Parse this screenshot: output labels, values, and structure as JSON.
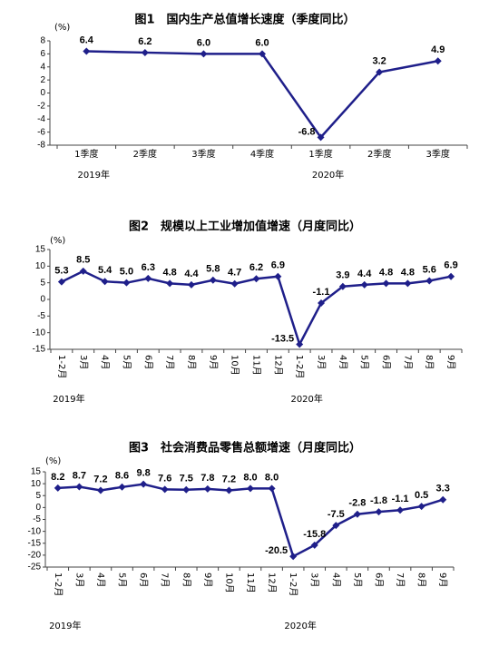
{
  "chart_data": [
    {
      "type": "line",
      "title": "图1　国内生产总值增长速度（季度同比）",
      "unit": "(%)",
      "categories": [
        "1季度",
        "2季度",
        "3季度",
        "4季度",
        "1季度",
        "2季度",
        "3季度"
      ],
      "year_labels": [
        "2019年",
        "2020年"
      ],
      "values": [
        6.4,
        6.2,
        6.0,
        6.0,
        -6.8,
        3.2,
        4.9
      ],
      "value_labels": [
        "6.4",
        "6.2",
        "6.0",
        "6.0",
        "-6.8",
        "3.2",
        "4.9"
      ],
      "color": "#1f1f8a",
      "ylim": [
        -8,
        8
      ],
      "yticks": [
        -8,
        -6,
        -4,
        -2,
        0,
        2,
        4,
        6,
        8
      ]
    },
    {
      "type": "line",
      "title": "图2　规模以上工业增加值增速（月度同比）",
      "unit": "(%)",
      "categories": [
        "1-2月",
        "3月",
        "4月",
        "5月",
        "6月",
        "7月",
        "8月",
        "9月",
        "10月",
        "11月",
        "12月",
        "1-2月",
        "3月",
        "4月",
        "5月",
        "6月",
        "7月",
        "8月",
        "9月"
      ],
      "year_labels": [
        "2019年",
        "2020年"
      ],
      "values": [
        5.3,
        8.5,
        5.4,
        5.0,
        6.3,
        4.8,
        4.4,
        5.8,
        4.7,
        6.2,
        6.9,
        -13.5,
        -1.1,
        3.9,
        4.4,
        4.8,
        4.8,
        5.6,
        6.9
      ],
      "value_labels": [
        "5.3",
        "8.5",
        "5.4",
        "5.0",
        "6.3",
        "4.8",
        "4.4",
        "5.8",
        "4.7",
        "6.2",
        "6.9",
        "-13.5",
        "-1.1",
        "3.9",
        "4.4",
        "4.8",
        "4.8",
        "5.6",
        "6.9"
      ],
      "color": "#1f1f8a",
      "ylim": [
        -15,
        15
      ],
      "yticks": [
        -15,
        -10,
        -5,
        0,
        5,
        10,
        15
      ]
    },
    {
      "type": "line",
      "title": "图3　社会消费品零售总额增速（月度同比）",
      "unit": "(%)",
      "categories": [
        "1-2月",
        "3月",
        "4月",
        "5月",
        "6月",
        "7月",
        "8月",
        "9月",
        "10月",
        "11月",
        "12月",
        "1-2月",
        "3月",
        "4月",
        "5月",
        "6月",
        "7月",
        "8月",
        "9月"
      ],
      "year_labels": [
        "2019年",
        "2020年"
      ],
      "values": [
        8.2,
        8.7,
        7.2,
        8.6,
        9.8,
        7.6,
        7.5,
        7.8,
        7.2,
        8.0,
        8.0,
        -20.5,
        -15.8,
        -7.5,
        -2.8,
        -1.8,
        -1.1,
        0.5,
        3.3
      ],
      "value_labels": [
        "8.2",
        "8.7",
        "7.2",
        "8.6",
        "9.8",
        "7.6",
        "7.5",
        "7.8",
        "7.2",
        "8.0",
        "8.0",
        "-20.5",
        "-15.8",
        "-7.5",
        "-2.8",
        "-1.8",
        "-1.1",
        "0.5",
        "3.3"
      ],
      "color": "#1f1f8a",
      "ylim": [
        -25,
        15
      ],
      "yticks": [
        -25,
        -20,
        -15,
        -10,
        -5,
        0,
        5,
        10,
        15
      ]
    }
  ]
}
